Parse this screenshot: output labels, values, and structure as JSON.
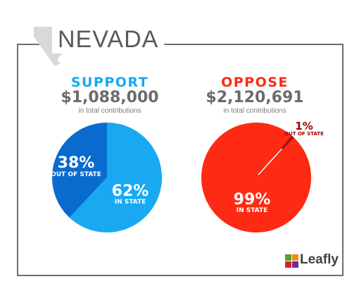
{
  "title": "NEVADA",
  "colors": {
    "support_light": "#18a9f2",
    "support_dark": "#0a6bcf",
    "oppose_light": "#fe2a14",
    "oppose_dark": "#b00c0c",
    "frame": "#6e6e6e",
    "logo_green": "#5aa02c",
    "logo_orange": "#f08a1c",
    "logo_red": "#d8222a",
    "logo_purple": "#6a2d91"
  },
  "support": {
    "heading": "SUPPORT",
    "amount": "$1,088,000",
    "caption": "in total contributions"
  },
  "oppose": {
    "heading": "OPPOSE",
    "amount": "$2,120,691",
    "caption": "in total contributions"
  },
  "logo": {
    "text": "Leafly",
    "icon": "leafly-logo-icon"
  },
  "chart_data": [
    {
      "type": "pie",
      "title": "SUPPORT",
      "categories": [
        "OUT OF STATE",
        "IN STATE"
      ],
      "values": [
        38,
        62
      ],
      "labels": [
        "38%",
        "62%"
      ],
      "colors": [
        "#0a6bcf",
        "#18a9f2"
      ]
    },
    {
      "type": "pie",
      "title": "OPPOSE",
      "categories": [
        "OUT OF STATE",
        "IN STATE"
      ],
      "values": [
        1,
        99
      ],
      "labels": [
        "1%",
        "99%"
      ],
      "colors": [
        "#b00c0c",
        "#fe2a14"
      ]
    }
  ]
}
